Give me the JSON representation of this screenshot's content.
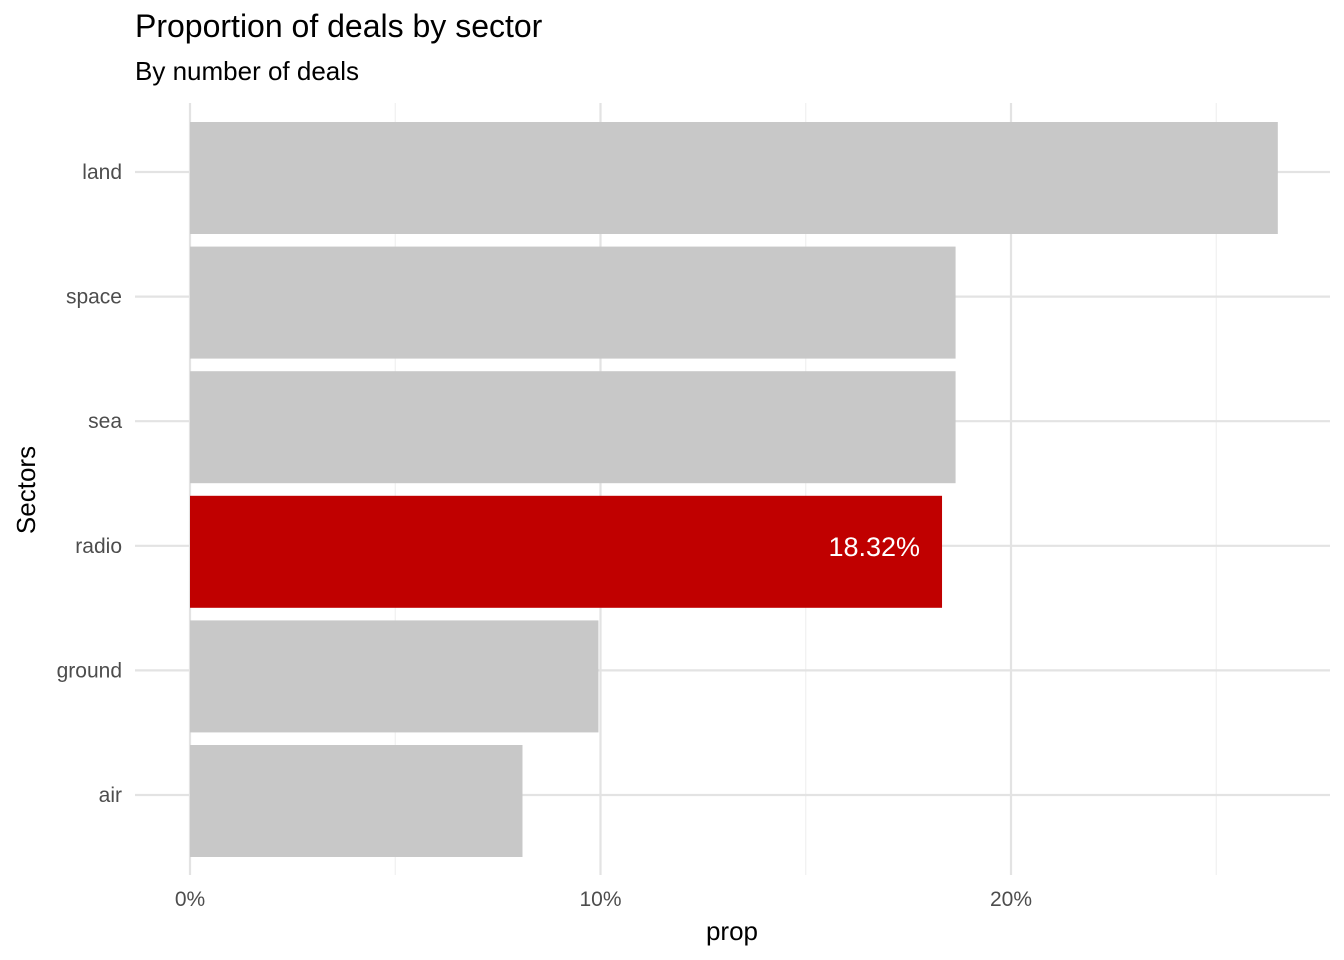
{
  "chart_data": {
    "type": "bar",
    "orientation": "horizontal",
    "title": "Proportion of deals by sector",
    "subtitle": "By number of deals",
    "xlabel": "prop",
    "ylabel": "Sectors",
    "categories": [
      "land",
      "space",
      "sea",
      "radio",
      "ground",
      "air"
    ],
    "values": [
      26.5,
      18.65,
      18.65,
      18.32,
      9.95,
      8.1
    ],
    "xlim": [
      0,
      27
    ],
    "x_ticks": [
      0,
      10,
      20
    ],
    "x_tick_labels": [
      "0%",
      "10%",
      "20%"
    ],
    "grid": true,
    "highlight": {
      "category": "radio",
      "label": "18.32%"
    },
    "colors": {
      "bar": "#c8c8c8",
      "highlight": "#c00000",
      "grid_major": "#e3e3e3",
      "grid_minor": "#f0f0f0",
      "label_text": "#ffffff"
    }
  }
}
